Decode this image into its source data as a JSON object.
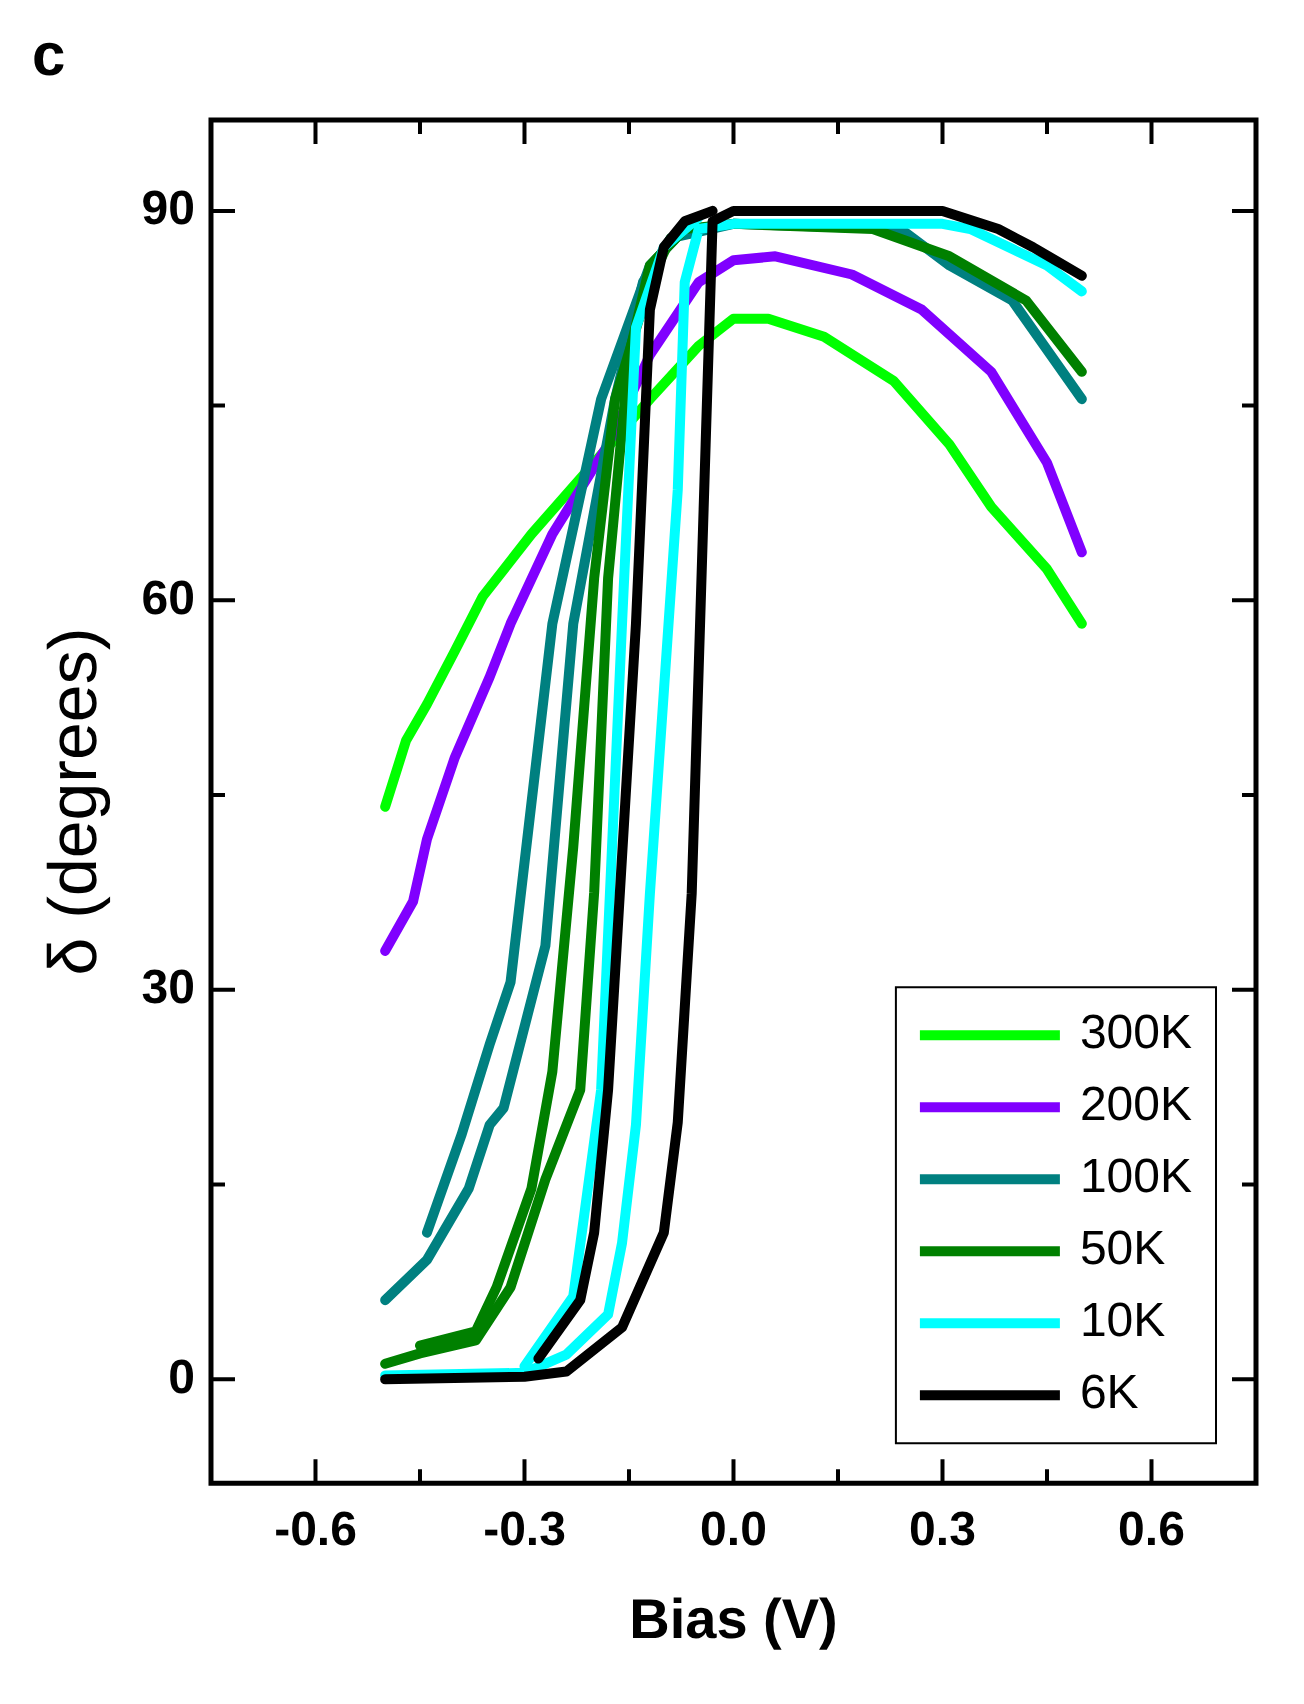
{
  "chart_data": {
    "type": "line",
    "xlabel": "Bias (V)",
    "ylabel": "δ (degrees)",
    "annotations": [
      "c"
    ],
    "xlim": [
      -0.75,
      0.75
    ],
    "xticks": [
      -0.6,
      -0.3,
      {
        "value": 0,
        "label": "0.0"
      },
      0.3,
      0.6
    ],
    "ylim": [
      -8,
      97
    ],
    "yticks": [
      0,
      30,
      60,
      90
    ],
    "legend": "bottom right",
    "marker": "none",
    "line_style": "solid",
    "grid": false,
    "series": [
      {
        "name": "6K",
        "color": "#000000",
        "x": [
          -0.5,
          -0.3,
          -0.24,
          -0.16,
          -0.1,
          -0.08,
          -0.06,
          -0.04,
          -0.03,
          0,
          0.3,
          0.38,
          0.43,
          0.5
        ],
        "values": [
          0,
          0.2,
          0.6,
          4,
          11.3,
          19.8,
          37.4,
          72,
          89.2,
          90,
          90,
          88.6,
          87.2,
          85
        ]
      },
      {
        "color": "#000000",
        "x": [
          -0.28,
          -0.22,
          -0.2,
          -0.18,
          -0.14,
          -0.12,
          -0.1,
          -0.07,
          -0.03
        ],
        "values": [
          1.6,
          6.1,
          11.3,
          22.3,
          58.2,
          82.4,
          87.2,
          89.2,
          90
        ]
      },
      {
        "name": "10K",
        "color": "#00ffff",
        "x": [
          -0.5,
          -0.3,
          -0.24,
          -0.18,
          -0.16,
          -0.14,
          -0.12,
          -0.08,
          -0.07,
          -0.05,
          0,
          0.3,
          0.34,
          0.45,
          0.5
        ],
        "values": [
          0.3,
          0.5,
          1.9,
          5,
          10.5,
          19.6,
          37.4,
          68.5,
          84.5,
          88.6,
          89,
          89,
          88.6,
          85.8,
          83.8
        ]
      },
      {
        "color": "#00ffff",
        "x": [
          -0.3,
          -0.23,
          -0.19,
          -0.16,
          -0.14,
          -0.1,
          -0.05
        ],
        "values": [
          1,
          6.4,
          22.3,
          58.2,
          81,
          87.2,
          89.5
        ]
      },
      {
        "name": "50K",
        "color": "#008000",
        "x": [
          -0.5,
          -0.45,
          -0.37,
          -0.32,
          -0.27,
          -0.22,
          -0.2,
          -0.18,
          -0.15,
          -0.12,
          -0.07,
          0,
          0.2,
          0.31,
          0.42,
          0.5
        ],
        "values": [
          1.2,
          2,
          3,
          7.1,
          15.4,
          22.3,
          37.5,
          61.7,
          78.9,
          85.8,
          88.6,
          89,
          88.6,
          86.5,
          83.1,
          77.6
        ]
      },
      {
        "color": "#008000",
        "x": [
          -0.45,
          -0.37,
          -0.34,
          -0.29,
          -0.26,
          -0.23,
          -0.2,
          -0.17,
          -0.12,
          -0.09
        ],
        "values": [
          2.6,
          3.7,
          7.1,
          14.7,
          23.7,
          41,
          61.7,
          75.5,
          84.5,
          87.9
        ]
      },
      {
        "name": "100K",
        "color": "#008080",
        "x": [
          -0.5,
          -0.44,
          -0.38,
          -0.35,
          -0.33,
          -0.27,
          -0.23,
          -0.17,
          -0.13,
          -0.09,
          0,
          0.24,
          0.31,
          0.4,
          0.5
        ],
        "values": [
          6.1,
          9.2,
          14.7,
          19.6,
          20.9,
          33.4,
          58.2,
          75.5,
          84.5,
          87.9,
          89,
          88.6,
          85.8,
          83.1,
          75.5
        ]
      },
      {
        "color": "#008080",
        "x": [
          -0.44,
          -0.39,
          -0.35,
          -0.32,
          -0.26,
          -0.19,
          -0.12,
          -0.07
        ],
        "values": [
          11.3,
          18.9,
          25.8,
          30.6,
          58.2,
          75.5,
          85.8,
          88.6
        ]
      },
      {
        "name": "200K",
        "color": "#8000ff",
        "x": [
          -0.5,
          -0.46,
          -0.44,
          -0.4,
          -0.35,
          -0.32,
          -0.26,
          -0.18,
          -0.12,
          -0.05,
          0,
          0.06,
          0.17,
          0.27,
          0.37,
          0.45,
          0.5
        ],
        "values": [
          33,
          36.8,
          41.6,
          47.9,
          54.1,
          58.2,
          65.1,
          72,
          78.9,
          84.5,
          86.2,
          86.5,
          85.1,
          82.4,
          77.6,
          70.6,
          63.7
        ]
      },
      {
        "name": "300K",
        "color": "#00ff00",
        "x": [
          -0.5,
          -0.47,
          -0.44,
          -0.4,
          -0.36,
          -0.29,
          -0.2,
          -0.12,
          -0.05,
          0,
          0.05,
          0.13,
          0.23,
          0.31,
          0.37,
          0.45,
          0.5
        ],
        "values": [
          44.1,
          49.2,
          52,
          56.1,
          60.3,
          65.1,
          70.6,
          75.5,
          79.6,
          81.7,
          81.7,
          80.3,
          76.9,
          72,
          67.2,
          62.4,
          58.2
        ]
      }
    ]
  }
}
